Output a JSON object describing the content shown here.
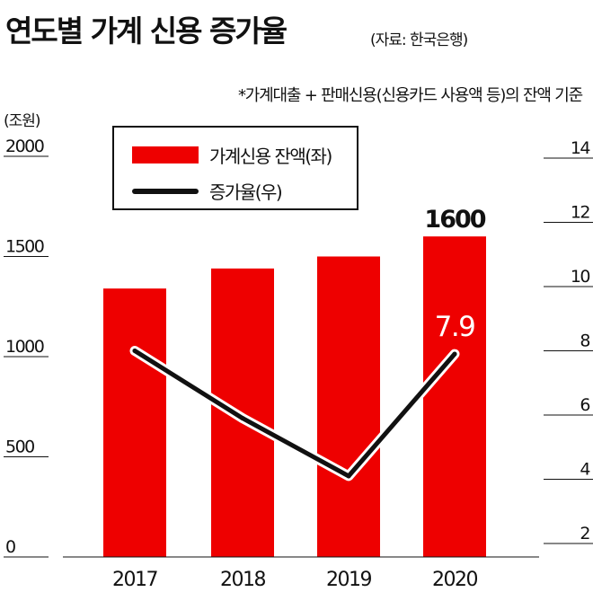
{
  "header": {
    "title": "연도별 가계 신용 증가율",
    "source": "(자료: 한국은행)",
    "note": "*가계대출 + 판매신용(신용카드 사용액 등)의 잔액 기준",
    "unit": "(조원)"
  },
  "legend": {
    "bar_label": "가계신용 잔액(좌)",
    "line_label": "증가율(우)"
  },
  "colors": {
    "bar": "#ee0000",
    "line": "#111111",
    "line_halo": "#ffffff",
    "value_label_light": "#ffffff"
  },
  "chart_data": {
    "type": "bar+line",
    "categories": [
      "2017",
      "2018",
      "2019",
      "2020"
    ],
    "series": [
      {
        "type": "bar",
        "axis": "left",
        "values": [
          1340,
          1440,
          1500,
          1600
        ]
      },
      {
        "type": "line",
        "axis": "right",
        "values": [
          8.0,
          5.9,
          4.1,
          7.9
        ]
      }
    ],
    "y_left": {
      "range": [
        0,
        2000
      ],
      "ticks": [
        "0",
        "500",
        "1000",
        "1500",
        "2000"
      ]
    },
    "y_right": {
      "range": [
        2,
        14
      ],
      "ticks": [
        "2",
        "4",
        "6",
        "8",
        "10",
        "12",
        "14"
      ]
    },
    "data_labels": [
      {
        "series": 0,
        "index": 3,
        "text": "1600"
      },
      {
        "series": 1,
        "index": 3,
        "text": "7.9"
      }
    ],
    "grid": false
  }
}
